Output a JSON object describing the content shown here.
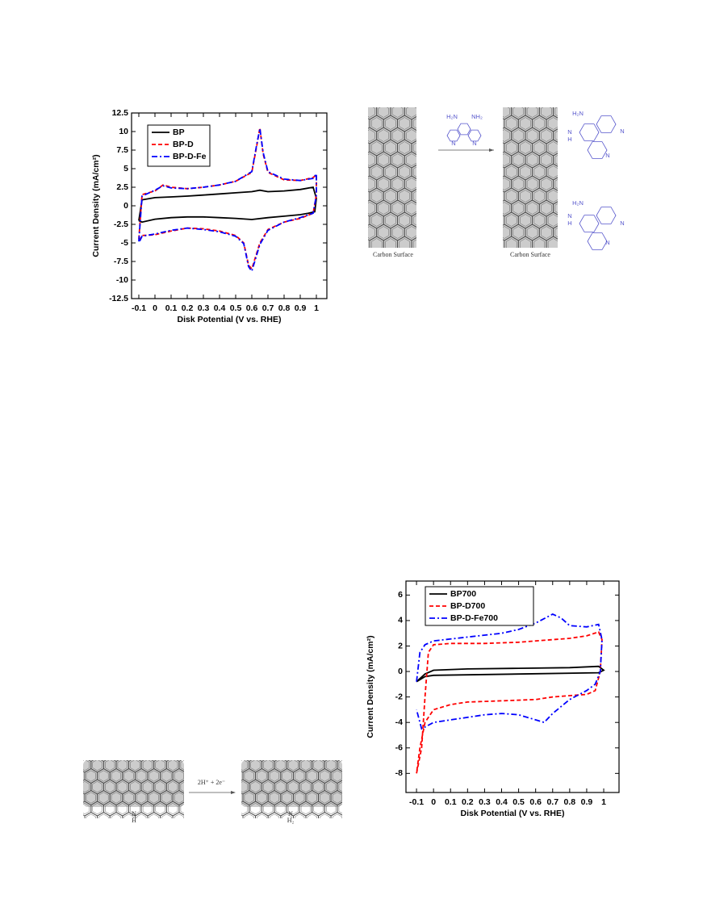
{
  "chart_data": [
    {
      "type": "line",
      "y_label": "Current Density (mA/cm²)",
      "x_label": "Disk Potential (V vs. RHE)",
      "xlim": [
        -0.145,
        1.065
      ],
      "ylim": [
        -12.5,
        12.5
      ],
      "xticks": [
        -0.1,
        0,
        0.1,
        0.2,
        0.3,
        0.4,
        0.5,
        0.6,
        0.7,
        0.8,
        0.9,
        1
      ],
      "yticks": [
        -12.5,
        -10,
        -7.5,
        -5,
        -2.5,
        0,
        2.5,
        5,
        7.5,
        10,
        12.5
      ],
      "legend": "upper left",
      "series": [
        {
          "name": "BP",
          "color": "#000000",
          "line_style": "solid",
          "x": [
            -0.1,
            -0.08,
            0,
            0.1,
            0.2,
            0.3,
            0.4,
            0.5,
            0.6,
            0.65,
            0.7,
            0.8,
            0.9,
            0.98,
            1.0,
            0.99,
            0.95,
            0.9,
            0.8,
            0.7,
            0.6,
            0.5,
            0.4,
            0.3,
            0.2,
            0.1,
            0,
            -0.08,
            -0.1
          ],
          "values": [
            -2.0,
            0.8,
            1.1,
            1.2,
            1.3,
            1.45,
            1.6,
            1.75,
            1.9,
            2.1,
            1.9,
            2.0,
            2.2,
            2.5,
            1.0,
            -0.8,
            -1.0,
            -1.2,
            -1.4,
            -1.6,
            -1.85,
            -1.7,
            -1.6,
            -1.5,
            -1.5,
            -1.6,
            -1.8,
            -2.2,
            -2.0
          ]
        },
        {
          "name": "BP-D",
          "color": "#ff0000",
          "line_style": "dashed",
          "x": [
            -0.1,
            -0.08,
            0,
            0.05,
            0.1,
            0.2,
            0.3,
            0.4,
            0.5,
            0.6,
            0.63,
            0.65,
            0.67,
            0.7,
            0.8,
            0.9,
            0.98,
            1.0,
            1.0,
            0.98,
            0.9,
            0.8,
            0.7,
            0.65,
            0.6,
            0.58,
            0.55,
            0.5,
            0.4,
            0.3,
            0.2,
            0.1,
            0,
            -0.08,
            -0.1
          ],
          "values": [
            -4.5,
            1.5,
            2.0,
            2.8,
            2.5,
            2.3,
            2.5,
            2.8,
            3.3,
            4.5,
            8.0,
            10.5,
            7.0,
            4.5,
            3.5,
            3.4,
            3.8,
            4.2,
            1.5,
            -1.0,
            -1.7,
            -2.2,
            -3.2,
            -5.0,
            -8.5,
            -8.0,
            -5.0,
            -4.0,
            -3.4,
            -3.1,
            -3.0,
            -3.4,
            -3.9,
            -4.0,
            -4.8
          ]
        },
        {
          "name": "BP-D-Fe",
          "color": "#0000ff",
          "line_style": "dashdot",
          "x": [
            -0.1,
            -0.08,
            0,
            0.05,
            0.1,
            0.2,
            0.3,
            0.4,
            0.5,
            0.6,
            0.63,
            0.65,
            0.67,
            0.7,
            0.8,
            0.9,
            0.98,
            1.0,
            1.0,
            0.98,
            0.9,
            0.8,
            0.7,
            0.65,
            0.6,
            0.58,
            0.55,
            0.5,
            0.4,
            0.3,
            0.2,
            0.1,
            0,
            -0.08,
            -0.1
          ],
          "values": [
            -4.8,
            1.3,
            2.1,
            2.7,
            2.4,
            2.3,
            2.5,
            2.8,
            3.3,
            4.6,
            8.2,
            10.4,
            7.2,
            4.6,
            3.6,
            3.4,
            3.7,
            4.3,
            1.4,
            -1.0,
            -1.6,
            -2.2,
            -3.3,
            -5.2,
            -8.8,
            -8.2,
            -5.1,
            -4.1,
            -3.5,
            -3.2,
            -3.0,
            -3.3,
            -3.8,
            -4.1,
            -5.0
          ]
        }
      ]
    },
    {
      "type": "line",
      "y_label": "Current Density (mA/cm²)",
      "x_label": "Disk Potential (V vs. RHE)",
      "xlim": [
        -0.162,
        1.09
      ],
      "ylim": [
        -9.5,
        7.1
      ],
      "xticks": [
        -0.1,
        0,
        0.1,
        0.2,
        0.3,
        0.4,
        0.5,
        0.6,
        0.7,
        0.8,
        0.9,
        1
      ],
      "yticks": [
        -8,
        -6,
        -4,
        -2,
        0,
        2,
        4,
        6
      ],
      "legend": "upper left",
      "series": [
        {
          "name": "BP700",
          "color": "#000000",
          "line_style": "solid",
          "x": [
            -0.1,
            -0.05,
            0,
            0.2,
            0.5,
            0.8,
            0.97,
            1.0,
            0.97,
            0.5,
            0,
            -0.05,
            -0.1
          ],
          "values": [
            -0.8,
            -0.2,
            0.1,
            0.2,
            0.25,
            0.3,
            0.4,
            0.1,
            -0.1,
            -0.2,
            -0.3,
            -0.4,
            -0.8
          ]
        },
        {
          "name": "BP-D700",
          "color": "#ff0000",
          "line_style": "dashed",
          "x": [
            -0.1,
            -0.07,
            -0.05,
            -0.03,
            0,
            0.1,
            0.3,
            0.5,
            0.7,
            0.8,
            0.9,
            0.97,
            0.99,
            0.98,
            0.95,
            0.9,
            0.8,
            0.7,
            0.6,
            0.4,
            0.2,
            0.1,
            0,
            -0.05,
            -0.08,
            -0.1
          ],
          "values": [
            -8.0,
            -6.0,
            -2.0,
            1.5,
            2.1,
            2.2,
            2.2,
            2.3,
            2.5,
            2.6,
            2.8,
            3.1,
            2.5,
            0,
            -1.5,
            -1.8,
            -1.9,
            -2.0,
            -2.2,
            -2.3,
            -2.4,
            -2.6,
            -3.0,
            -4.0,
            -6.0,
            -8.0
          ]
        },
        {
          "name": "BP-D-Fe700",
          "color": "#0000ff",
          "line_style": "dashdot",
          "x": [
            -0.1,
            -0.08,
            -0.05,
            0,
            0.2,
            0.4,
            0.5,
            0.6,
            0.7,
            0.75,
            0.8,
            0.9,
            0.97,
            0.99,
            0.98,
            0.95,
            0.9,
            0.8,
            0.7,
            0.65,
            0.6,
            0.5,
            0.4,
            0.3,
            0.2,
            0.1,
            0,
            -0.07,
            -0.1
          ],
          "values": [
            -0.8,
            1.5,
            2.1,
            2.4,
            2.7,
            3.0,
            3.3,
            3.8,
            4.5,
            4.2,
            3.6,
            3.5,
            3.7,
            2.5,
            0,
            -1.0,
            -1.5,
            -2.2,
            -3.3,
            -4.0,
            -3.8,
            -3.4,
            -3.3,
            -3.4,
            -3.6,
            -3.8,
            -4.0,
            -4.5,
            -3.0
          ]
        }
      ]
    }
  ],
  "scheme_1": {
    "surface_left": "Carbon Surface",
    "surface_right": "Carbon Surface",
    "reagent": [
      "H₂N",
      "NH₂",
      "N",
      "N"
    ],
    "product_top": [
      "H₂N",
      "N",
      "H",
      "N",
      "N"
    ],
    "product_bottom": [
      "H₂N",
      "N",
      "H",
      "N",
      "N"
    ]
  },
  "scheme_2": {
    "reagent": "2H⁺ + 2e⁻",
    "left": [
      "N",
      "H"
    ],
    "right": [
      "N",
      "H₂"
    ]
  }
}
